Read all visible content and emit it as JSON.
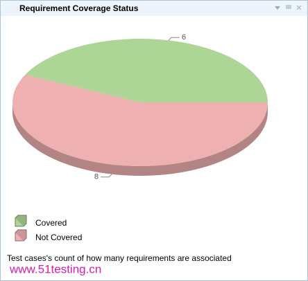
{
  "chart_data": {
    "type": "pie",
    "title": "Requirement Coverage Status",
    "categories": [
      "Covered",
      "Not Covered"
    ],
    "values": [
      6,
      8
    ],
    "colors": [
      "#acd596",
      "#eeb0b0"
    ],
    "footer": "Test cases's count of how many requirements are associated",
    "watermark": "www.51testing.cn"
  }
}
